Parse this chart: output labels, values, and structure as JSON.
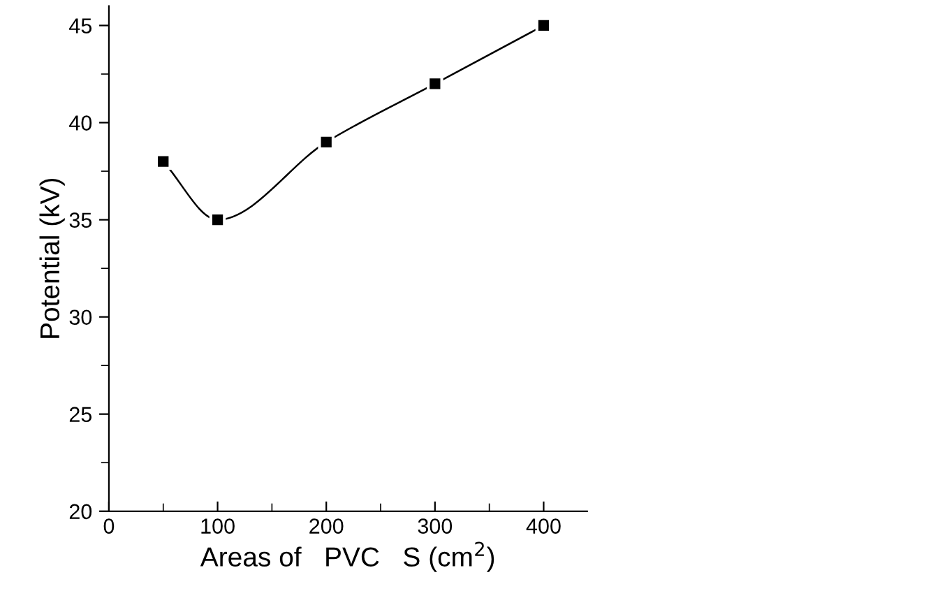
{
  "chart_data": {
    "type": "line",
    "xlabel": "Areas of   PVC   S (cm$^{2}$)",
    "ylabel": "Potential (kV)",
    "x": [
      50,
      100,
      200,
      300,
      400
    ],
    "series": [
      {
        "color": "#000000",
        "values": [
          38,
          35,
          39,
          42,
          45
        ]
      }
    ],
    "xlim": [
      0,
      440
    ],
    "ylim": [
      20,
      46
    ],
    "xticks": [
      0,
      100,
      200,
      300,
      400
    ],
    "yticks": [
      20,
      25,
      30,
      35,
      40,
      45
    ],
    "marker": "square",
    "line_style": "solid",
    "grid": false,
    "legend": false
  }
}
